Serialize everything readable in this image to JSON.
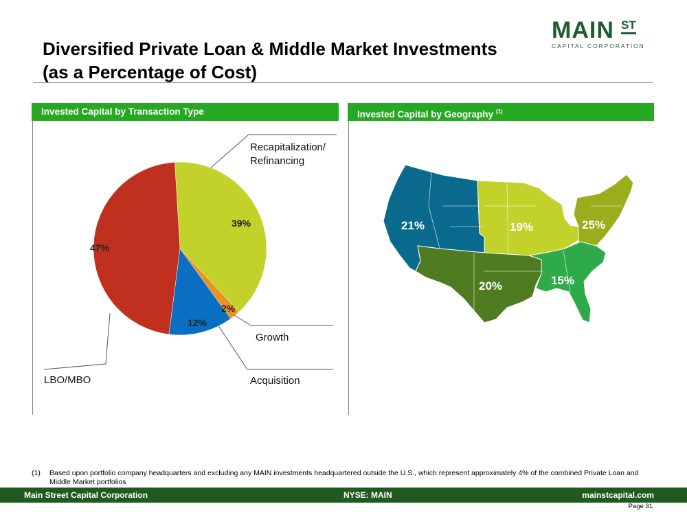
{
  "title_line1": "Diversified Private Loan & Middle Market Investments",
  "title_line2": "(as a Percentage of Cost)",
  "logo": {
    "main": "MAIN",
    "st": "ST",
    "sub": "CAPITAL CORPORATION"
  },
  "left_panel": {
    "title": "Invested Capital by Transaction Type"
  },
  "right_panel": {
    "title": "Invested Capital by Geography",
    "sup": "(1)"
  },
  "colors": {
    "header_green": "#27a822",
    "footer_green": "#1f5b1f",
    "lbo": "#c0301e",
    "recap": "#c3d12b",
    "acquisition": "#0a6fc2",
    "growth": "#e89422",
    "west": "#0a6a8e",
    "midwest": "#c3d12b",
    "northeast": "#9aad1a",
    "southwest": "#4f7b21",
    "southeast": "#2faa4a"
  },
  "chart_data": [
    {
      "type": "pie",
      "title": "Invested Capital by Transaction Type",
      "series": [
        {
          "name": "Recapitalization/ Refinancing",
          "value": 39,
          "label": "39%",
          "color": "#c3d12b"
        },
        {
          "name": "Growth",
          "value": 2,
          "label": "2%",
          "color": "#e89422"
        },
        {
          "name": "Acquisition",
          "value": 12,
          "label": "12%",
          "color": "#0a6fc2"
        },
        {
          "name": "LBO/MBO",
          "value": 47,
          "label": "47%",
          "color": "#c0301e"
        }
      ],
      "callouts": {
        "recap_line1": "Recapitalization/",
        "recap_line2": "Refinancing",
        "growth": "Growth",
        "acquisition": "Acquisition",
        "lbo": "LBO/MBO"
      }
    },
    {
      "type": "map",
      "title": "Invested Capital by Geography",
      "regions": [
        {
          "label": "21%",
          "value": 21,
          "color": "#0a6a8e"
        },
        {
          "label": "19%",
          "value": 19,
          "color": "#c3d12b"
        },
        {
          "label": "25%",
          "value": 25,
          "color": "#9aad1a"
        },
        {
          "label": "20%",
          "value": 20,
          "color": "#4f7b21"
        },
        {
          "label": "15%",
          "value": 15,
          "color": "#2faa4a"
        }
      ]
    }
  ],
  "footnote": {
    "num": "(1)",
    "text": "Based upon portfolio company headquarters and excluding any MAIN investments headquartered outside the U.S., which represent approximately 4% of the combined Private Loan and Middle Market portfolios"
  },
  "footer": {
    "left": "Main Street Capital Corporation",
    "middle": "NYSE: MAIN",
    "right": "mainstcapital.com"
  },
  "page": "Page  31"
}
